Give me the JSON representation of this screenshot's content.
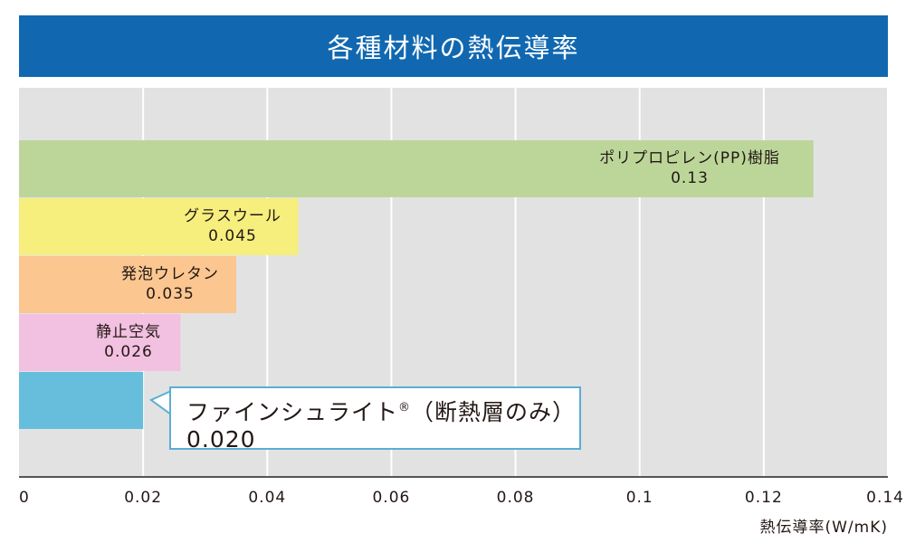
{
  "title": "各種材料の熱伝導率",
  "chart_data": {
    "type": "bar",
    "orientation": "horizontal",
    "title": "各種材料の熱伝導率",
    "xlabel": "熱伝導率(W/mK)",
    "ylabel": "",
    "xlim": [
      0,
      0.14
    ],
    "xticks": [
      "0",
      "0.02",
      "0.04",
      "0.06",
      "0.08",
      "0.1",
      "0.12",
      "0.14"
    ],
    "grid": true,
    "categories": [
      "ポリプロピレン(PP)樹脂",
      "グラスウール",
      "発泡ウレタン",
      "静止空気",
      "ファインシュライト(断熱層のみ)"
    ],
    "values": [
      0.128,
      0.045,
      0.035,
      0.026,
      0.02
    ],
    "value_labels": [
      "0.13",
      "0.045",
      "0.035",
      "0.026",
      "0.020"
    ],
    "colors": [
      "#bcd69a",
      "#f6ee7d",
      "#fbc690",
      "#f2c0e0",
      "#66bedc"
    ]
  },
  "callout": {
    "name": "ファインシュライト",
    "mark": "®",
    "suffix": "（断熱層のみ）",
    "value": "0.020"
  }
}
